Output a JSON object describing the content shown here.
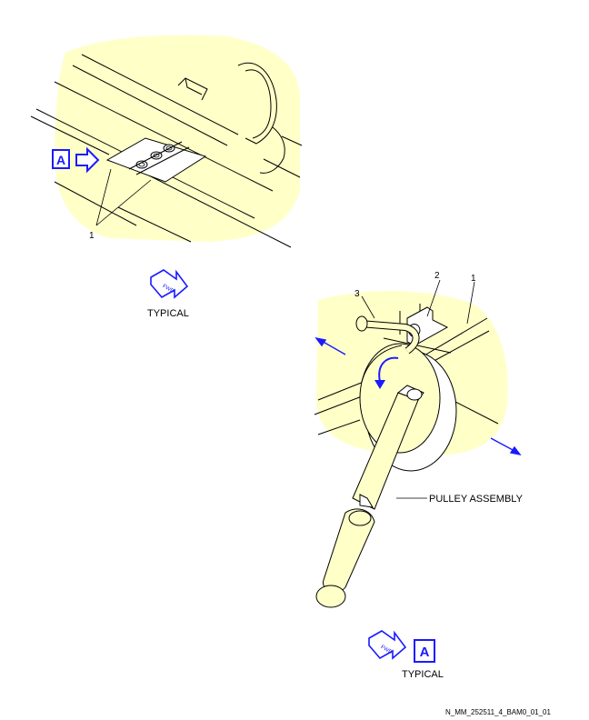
{
  "view_a": {
    "marker_letter": "A",
    "item_callout": "1",
    "orientation_label": "TYPICAL",
    "fwd_icon_text": "FWD"
  },
  "detail": {
    "callouts": [
      "1",
      "2",
      "3"
    ],
    "pulley_label": "PULLEY ASSEMBLY",
    "orientation_label": "TYPICAL",
    "fwd_icon_text": "FWD",
    "marker_letter": "A"
  },
  "footer": {
    "reference": "N_MM_252511_4_BAM0_01_01"
  },
  "colors": {
    "highlight": "#ffffc8",
    "marker_blue": "#1a1aff",
    "line": "#000000"
  }
}
